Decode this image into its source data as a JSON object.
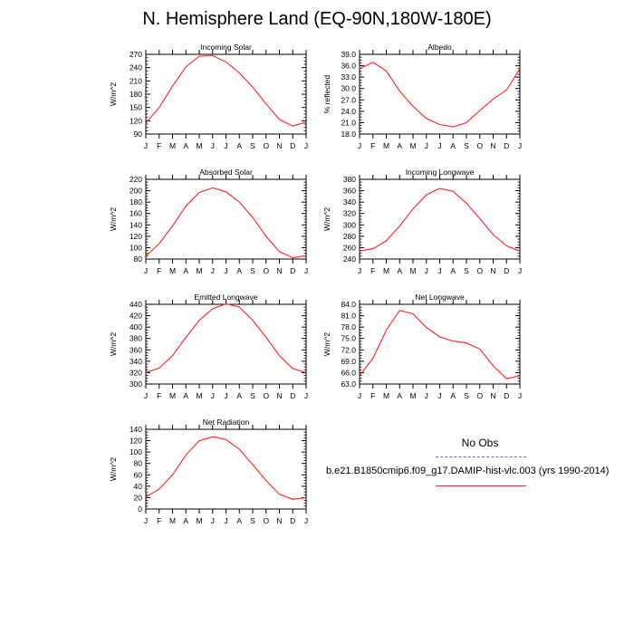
{
  "title": "N. Hemisphere Land (EQ-90N,180W-180E)",
  "legend": {
    "obs_label": "No Obs",
    "model_label": "b.e21.B1850cmip6.f09_g17.DAMIP-hist-vlc.003 (yrs 1990-2014)",
    "obs_color": "#6a6af0",
    "model_color": "#ff2020"
  },
  "chart_data": [
    {
      "type": "line",
      "title": "Incoming Solar",
      "ylabel": "W/m^2",
      "categories": [
        "J",
        "F",
        "M",
        "A",
        "M",
        "J",
        "J",
        "A",
        "S",
        "O",
        "N",
        "D",
        "J"
      ],
      "ylim": [
        90,
        270
      ],
      "yticks": [
        "90",
        "120",
        "150",
        "180",
        "210",
        "240",
        "270"
      ],
      "ytick_values": [
        90,
        120,
        150,
        180,
        210,
        240,
        270
      ],
      "series": [
        {
          "name": "model",
          "color": "#ff2020",
          "values": [
            115,
            150,
            198,
            242,
            266,
            267,
            253,
            228,
            196,
            158,
            123,
            108,
            117
          ]
        }
      ]
    },
    {
      "type": "line",
      "title": "Albedo",
      "ylabel": "% reflected",
      "categories": [
        "J",
        "F",
        "M",
        "A",
        "M",
        "J",
        "J",
        "A",
        "S",
        "O",
        "N",
        "D",
        "J"
      ],
      "ylim": [
        18,
        39
      ],
      "yticks": [
        "18.0",
        "21.0",
        "24.0",
        "27.0",
        "30.0",
        "33.0",
        "36.0",
        "39.0"
      ],
      "ytick_values": [
        18,
        21,
        24,
        27,
        30,
        33,
        36,
        39
      ],
      "series": [
        {
          "name": "model",
          "color": "#ff2020",
          "values": [
            35.2,
            36.9,
            34.6,
            29.3,
            25.3,
            22.1,
            20.5,
            19.9,
            21.0,
            24.2,
            27.2,
            29.6,
            35.2
          ]
        }
      ]
    },
    {
      "type": "line",
      "title": "Absorbed Solar",
      "ylabel": "W/m^2",
      "categories": [
        "J",
        "F",
        "M",
        "A",
        "M",
        "J",
        "J",
        "A",
        "S",
        "O",
        "N",
        "D",
        "J"
      ],
      "ylim": [
        80,
        220
      ],
      "yticks": [
        "80",
        "100",
        "120",
        "140",
        "160",
        "180",
        "200",
        "220"
      ],
      "ytick_values": [
        80,
        100,
        120,
        140,
        160,
        180,
        200,
        220
      ],
      "series": [
        {
          "name": "model",
          "color": "#ff2020",
          "values": [
            85,
            107,
            138,
            173,
            197,
            205,
            198,
            180,
            153,
            120,
            93,
            82,
            86
          ]
        }
      ]
    },
    {
      "type": "line",
      "title": "Incoming Longwave",
      "ylabel": "W/m^2",
      "categories": [
        "J",
        "F",
        "M",
        "A",
        "M",
        "J",
        "J",
        "A",
        "S",
        "O",
        "N",
        "D",
        "J"
      ],
      "ylim": [
        240,
        380
      ],
      "yticks": [
        "240",
        "260",
        "280",
        "300",
        "320",
        "340",
        "360",
        "380"
      ],
      "ytick_values": [
        240,
        260,
        280,
        300,
        320,
        340,
        360,
        380
      ],
      "series": [
        {
          "name": "model",
          "color": "#ff2020",
          "values": [
            254,
            258,
            272,
            298,
            328,
            353,
            364,
            359,
            338,
            311,
            283,
            263,
            254
          ]
        }
      ]
    },
    {
      "type": "line",
      "title": "Emitted Longwave",
      "ylabel": "W/m^2",
      "categories": [
        "J",
        "F",
        "M",
        "A",
        "M",
        "J",
        "J",
        "A",
        "S",
        "O",
        "N",
        "D",
        "J"
      ],
      "ylim": [
        300,
        440
      ],
      "yticks": [
        "300",
        "320",
        "340",
        "360",
        "380",
        "400",
        "420",
        "440"
      ],
      "ytick_values": [
        300,
        320,
        340,
        360,
        380,
        400,
        420,
        440
      ],
      "series": [
        {
          "name": "model",
          "color": "#ff2020",
          "values": [
            320,
            328,
            350,
            382,
            412,
            432,
            441,
            435,
            412,
            382,
            350,
            327,
            320
          ]
        }
      ]
    },
    {
      "type": "line",
      "title": "Net Longwave",
      "ylabel": "W/m^2",
      "categories": [
        "J",
        "F",
        "M",
        "A",
        "M",
        "J",
        "J",
        "A",
        "S",
        "O",
        "N",
        "D",
        "J"
      ],
      "ylim": [
        63,
        84
      ],
      "yticks": [
        "63.0",
        "66.0",
        "69.0",
        "72.0",
        "75.0",
        "78.0",
        "81.0",
        "84.0"
      ],
      "ytick_values": [
        63,
        66,
        69,
        72,
        75,
        78,
        81,
        84
      ],
      "series": [
        {
          "name": "model",
          "color": "#ff2020",
          "values": [
            65.2,
            69.8,
            77.2,
            82.4,
            81.5,
            77.9,
            75.4,
            74.3,
            73.8,
            72.2,
            67.8,
            64.4,
            65.2
          ]
        }
      ]
    },
    {
      "type": "line",
      "title": "Net Radiation",
      "ylabel": "W/m^2",
      "categories": [
        "J",
        "F",
        "M",
        "A",
        "M",
        "J",
        "J",
        "A",
        "S",
        "O",
        "N",
        "D",
        "J"
      ],
      "ylim": [
        0,
        140
      ],
      "yticks": [
        "0",
        "20",
        "40",
        "60",
        "80",
        "100",
        "120",
        "140"
      ],
      "ytick_values": [
        0,
        20,
        40,
        60,
        80,
        100,
        120,
        140
      ],
      "series": [
        {
          "name": "model",
          "color": "#ff2020",
          "values": [
            21,
            35,
            60,
            95,
            120,
            127,
            122,
            105,
            78,
            50,
            26,
            17,
            20
          ]
        }
      ]
    }
  ]
}
